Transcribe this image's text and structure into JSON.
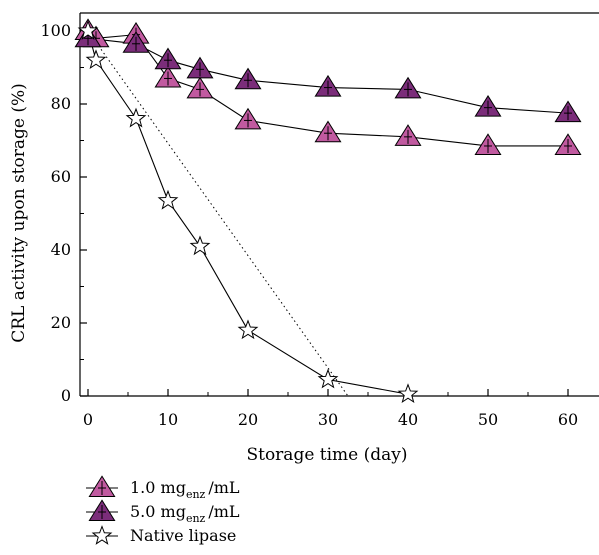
{
  "chart_data": {
    "type": "line",
    "title": "",
    "xlabel": "Storage time (day)",
    "ylabel": "CRL activity upon storage (%)",
    "xlim": [
      0,
      65
    ],
    "ylim": [
      0,
      100
    ],
    "xticks": [
      0,
      10,
      20,
      30,
      40,
      50,
      60
    ],
    "yticks": [
      0,
      20,
      40,
      60,
      80,
      100
    ],
    "xtick_labels": [
      "0",
      "10",
      "20",
      "30",
      "40",
      "50",
      "60"
    ],
    "ytick_labels": [
      "0",
      "20",
      "40",
      "60",
      "80",
      "100"
    ],
    "grid": false,
    "legend_position": "bottom-left, below plot",
    "series": [
      {
        "key": "enz1",
        "name": "1.0 mg_enz /mL",
        "legend_main": "1.0 mg",
        "legend_sub": "enz",
        "legend_tail": "/mL",
        "marker": "triangle",
        "color": "#c15aa0",
        "x": [
          0,
          1,
          6,
          10,
          14,
          20,
          30,
          40,
          50,
          60
        ],
        "y": [
          100,
          98,
          99,
          87,
          84,
          75.5,
          72,
          71,
          68.5,
          68.5
        ]
      },
      {
        "key": "enz5",
        "name": "5.0 mg_enz /mL",
        "legend_main": "5.0 mg",
        "legend_sub": "enz",
        "legend_tail": "/mL",
        "marker": "triangle",
        "color": "#7b2d7a",
        "x": [
          0,
          6,
          10,
          14,
          20,
          30,
          40,
          50,
          60
        ],
        "y": [
          98,
          96.5,
          92,
          89.5,
          86.5,
          84.5,
          84,
          79,
          77.5
        ]
      },
      {
        "key": "native",
        "name": "Native lipase",
        "legend_main": "Native lipase",
        "legend_sub": "",
        "legend_tail": "",
        "marker": "star",
        "color": "#ffffff",
        "x": [
          0,
          1,
          6,
          10,
          14,
          20,
          30,
          40
        ],
        "y": [
          100,
          92,
          76,
          53.5,
          41,
          18,
          4.5,
          0.5
        ]
      }
    ],
    "trend_line": {
      "style": "dotted",
      "x": [
        0,
        32.5
      ],
      "y": [
        100,
        0
      ]
    }
  }
}
